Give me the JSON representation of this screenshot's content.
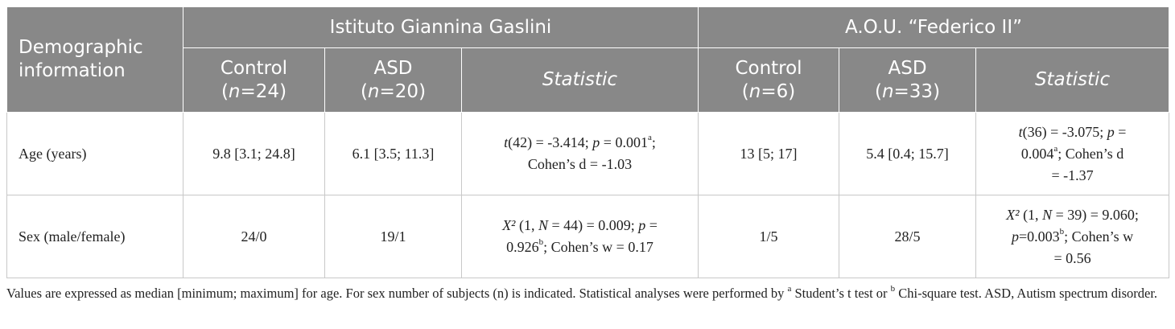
{
  "table": {
    "header": {
      "demographic": "Demographic information",
      "group1": "Istituto Giannina Gaslini",
      "group2": "A.O.U. “Federico II”",
      "g1_control": "Control",
      "g1_control_n": "24",
      "g1_asd": "ASD",
      "g1_asd_n": "20",
      "g1_statistic": "Statistic",
      "g2_control": "Control",
      "g2_control_n": "6",
      "g2_asd": "ASD",
      "g2_asd_n": "33",
      "g2_statistic": "Statistic",
      "n_letter": "n",
      "n_eq": "="
    },
    "rows": [
      {
        "label": "Age (years)",
        "g1_control": "9.8 [3.1; 24.8]",
        "g1_asd": "6.1 [3.5; 11.3]",
        "g1_stat": {
          "var": "t",
          "part1": "(42) = -3.414; ",
          "p_letter": "p",
          "part2": " = 0.001",
          "sup": "a",
          "part3": ";",
          "line2": "Cohen’s d = -1.03"
        },
        "g2_control": "13 [5; 17]",
        "g2_asd": "5.4 [0.4; 15.7]",
        "g2_stat": {
          "var": "t",
          "part1": "(36) = -3.075; ",
          "p_letter": "p",
          "part2": " =",
          "line2_a": "0.004",
          "sup": "a",
          "line2_b": "; Cohen’s d",
          "line3": "= -1.37"
        }
      },
      {
        "label": "Sex (male/female)",
        "g1_control": "24/0",
        "g1_asd": "19/1",
        "g1_stat": {
          "var": "X²",
          "part1": " (1, ",
          "n_letter": "N",
          "part2": " = 44) = 0.009; ",
          "p_letter": "p",
          "part3": " =",
          "line2_a": "0.926",
          "sup": "b",
          "line2_b": "; Cohen’s w = 0.17"
        },
        "g2_control": "1/5",
        "g2_asd": "28/5",
        "g2_stat": {
          "var": "X²",
          "part1": " (1, ",
          "n_letter": "N",
          "part2": " = 39) = 9.060;",
          "p_letter": "p",
          "line2_a": "=0.003",
          "sup": "b",
          "line2_b": "; Cohen’s w",
          "line3": "= 0.56"
        }
      }
    ]
  },
  "footnote": {
    "text1": "Values are expressed as median [minimum; maximum] for age. For sex number of subjects (n) is indicated. Statistical analyses were performed by ",
    "sup_a": "a",
    "text2": " Student’s t test or ",
    "sup_b": "b",
    "text3": " Chi-square test. ASD, Autism spectrum disorder."
  }
}
